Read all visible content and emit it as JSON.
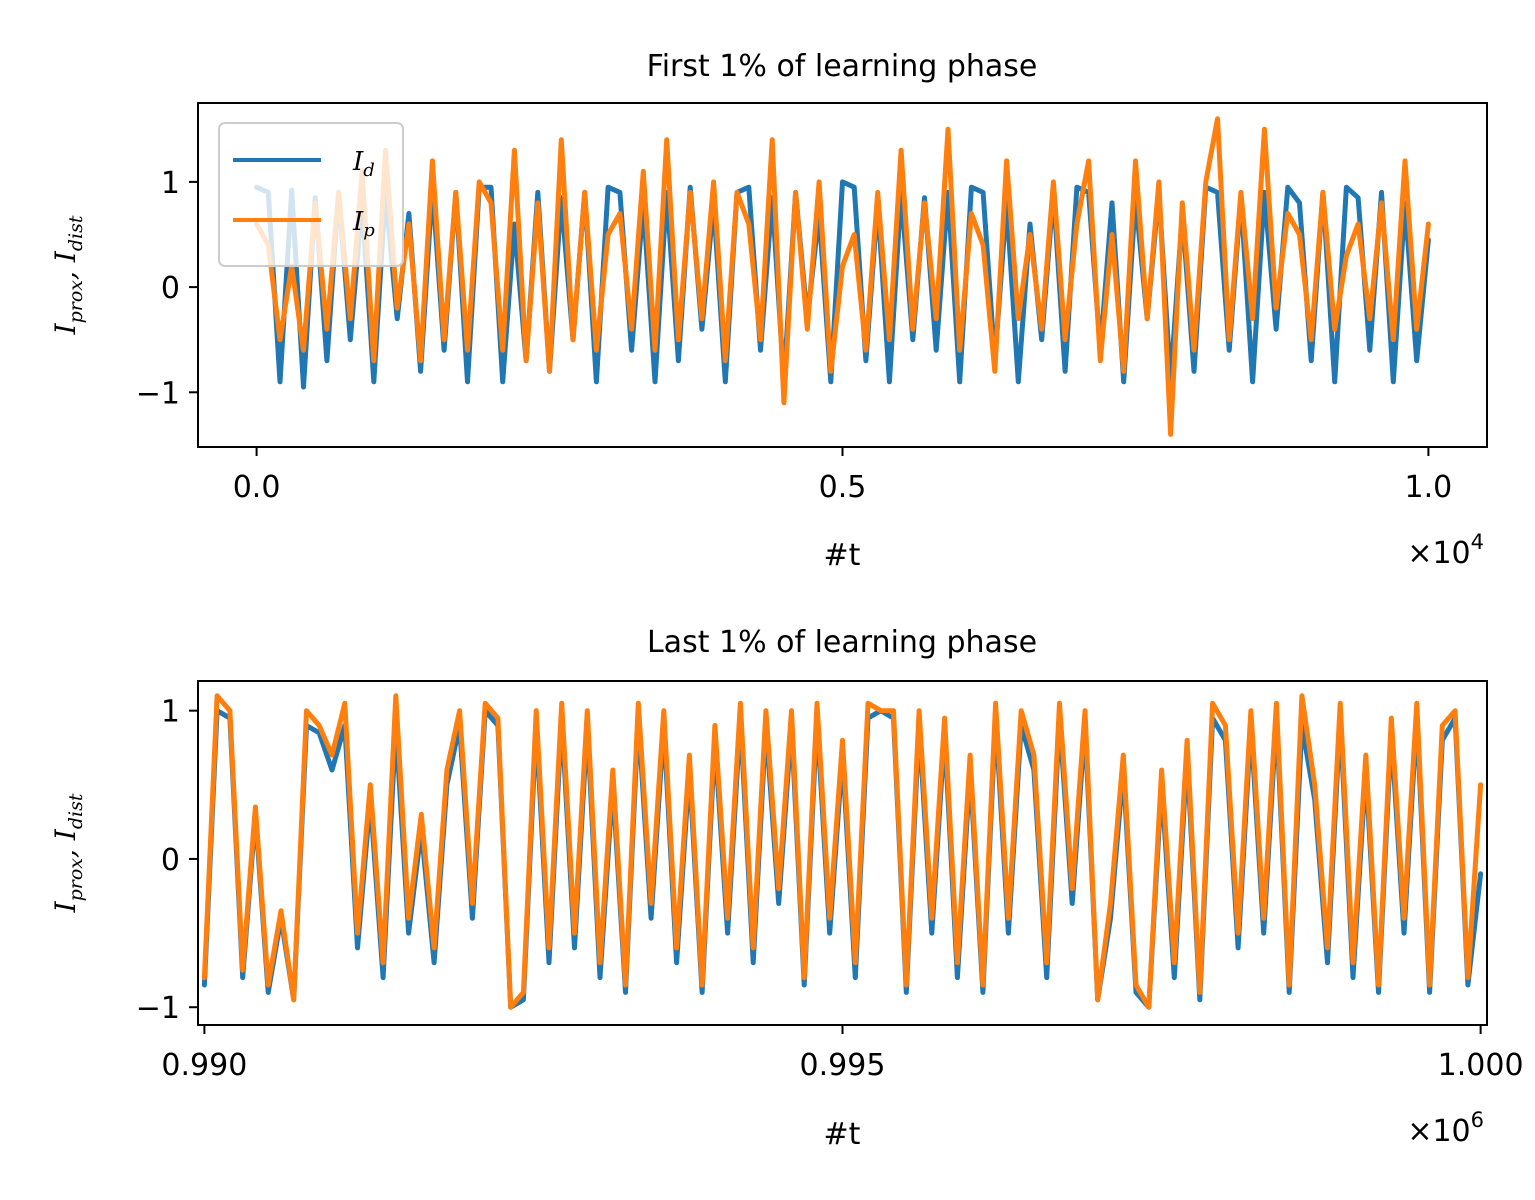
{
  "chart_data": [
    {
      "type": "line",
      "title": "First 1% of learning phase",
      "xlabel": "#t",
      "ylabel": {
        "main": "I",
        "sub1": "prox",
        "sep": ", ",
        "main2": "I",
        "sub2": "dist"
      },
      "xlim": [
        -500,
        10500
      ],
      "ylim": [
        -1.52,
        1.75
      ],
      "xticks": [
        0,
        5000,
        10000
      ],
      "xtick_labels": [
        "0.0",
        "0.5",
        "1.0"
      ],
      "offset_text": {
        "base": "×10",
        "exp": "4"
      },
      "yticks": [
        1,
        0,
        -1
      ],
      "ytick_labels": [
        "1",
        "0",
        "−1"
      ],
      "legend": {
        "placement": "upper-left"
      },
      "series": [
        {
          "name": "I_d",
          "label_main": "I",
          "label_sub": "d",
          "color": "#1f77b4",
          "x": [
            0,
            100,
            200,
            300,
            400,
            500,
            600,
            700,
            800,
            900,
            1000,
            1100,
            1200,
            1300,
            1400,
            1500,
            1600,
            1700,
            1800,
            1900,
            2000,
            2100,
            2200,
            2300,
            2400,
            2500,
            2600,
            2700,
            2800,
            2900,
            3000,
            3100,
            3200,
            3300,
            3400,
            3500,
            3600,
            3700,
            3800,
            3900,
            4000,
            4100,
            4200,
            4300,
            4400,
            4500,
            4600,
            4700,
            4800,
            4900,
            5000,
            5100,
            5200,
            5300,
            5400,
            5500,
            5600,
            5700,
            5800,
            5900,
            6000,
            6100,
            6200,
            6300,
            6400,
            6500,
            6600,
            6700,
            6800,
            6900,
            7000,
            7100,
            7200,
            7300,
            7400,
            7500,
            7600,
            7700,
            7800,
            7900,
            8000,
            8100,
            8200,
            8300,
            8400,
            8500,
            8600,
            8700,
            8800,
            8900,
            9000,
            9100,
            9200,
            9300,
            9400,
            9500,
            9600,
            9700,
            9800,
            9900,
            10000
          ],
          "y": [
            0.95,
            0.9,
            -0.9,
            0.92,
            -0.95,
            0.85,
            -0.7,
            0.9,
            -0.5,
            0.8,
            -0.9,
            0.9,
            -0.3,
            0.7,
            -0.8,
            0.95,
            -0.6,
            0.9,
            -0.9,
            0.95,
            0.95,
            -0.9,
            0.6,
            -0.7,
            0.9,
            -0.8,
            0.85,
            -0.5,
            0.9,
            -0.9,
            0.95,
            0.9,
            -0.6,
            0.8,
            -0.9,
            0.9,
            -0.7,
            0.95,
            -0.4,
            0.8,
            -0.9,
            0.9,
            0.95,
            -0.6,
            0.85,
            -0.9,
            0.9,
            -0.3,
            0.7,
            -0.9,
            1.0,
            0.95,
            -0.7,
            0.8,
            -0.9,
            0.9,
            -0.5,
            0.85,
            -0.6,
            0.9,
            -0.9,
            0.95,
            0.9,
            -0.7,
            0.8,
            -0.9,
            0.6,
            -0.5,
            0.9,
            -0.8,
            0.95,
            0.9,
            -0.6,
            0.8,
            -0.9,
            0.85,
            -0.3,
            0.9,
            -0.9,
            0.7,
            -0.8,
            0.95,
            0.9,
            -0.6,
            0.85,
            -0.9,
            0.9,
            -0.4,
            0.95,
            0.8,
            -0.7,
            0.9,
            -0.9,
            0.95,
            0.85,
            -0.6,
            0.9,
            -0.9,
            0.8,
            -0.7,
            0.45
          ]
        },
        {
          "name": "I_p",
          "label_main": "I",
          "label_sub": "p",
          "color": "#ff7f0e",
          "x": [
            0,
            100,
            200,
            300,
            400,
            500,
            600,
            700,
            800,
            900,
            1000,
            1100,
            1200,
            1300,
            1400,
            1500,
            1600,
            1700,
            1800,
            1900,
            2000,
            2100,
            2200,
            2300,
            2400,
            2500,
            2600,
            2700,
            2800,
            2900,
            3000,
            3100,
            3200,
            3300,
            3400,
            3500,
            3600,
            3700,
            3800,
            3900,
            4000,
            4100,
            4200,
            4300,
            4400,
            4500,
            4600,
            4700,
            4800,
            4900,
            5000,
            5100,
            5200,
            5300,
            5400,
            5500,
            5600,
            5700,
            5800,
            5900,
            6000,
            6100,
            6200,
            6300,
            6400,
            6500,
            6600,
            6700,
            6800,
            6900,
            7000,
            7100,
            7200,
            7300,
            7400,
            7500,
            7600,
            7700,
            7800,
            7900,
            8000,
            8100,
            8200,
            8300,
            8400,
            8500,
            8600,
            8700,
            8800,
            8900,
            9000,
            9100,
            9200,
            9300,
            9400,
            9500,
            9600,
            9700,
            9800,
            9900,
            10000
          ],
          "y": [
            0.6,
            0.4,
            -0.5,
            0.2,
            -0.6,
            0.8,
            -0.4,
            0.9,
            -0.3,
            1.1,
            -0.7,
            1.3,
            -0.2,
            0.6,
            -0.7,
            1.2,
            -0.5,
            0.9,
            -0.6,
            1.0,
            0.8,
            -0.6,
            1.3,
            -0.7,
            0.8,
            -0.8,
            1.4,
            -0.5,
            0.9,
            -0.6,
            0.5,
            0.7,
            -0.4,
            1.1,
            -0.6,
            1.4,
            -0.5,
            0.9,
            -0.3,
            1.0,
            -0.7,
            0.9,
            0.6,
            -0.5,
            1.4,
            -1.1,
            0.9,
            -0.4,
            1.0,
            -0.8,
            0.2,
            0.5,
            -0.6,
            0.9,
            -0.5,
            1.3,
            -0.4,
            0.8,
            -0.3,
            1.5,
            -0.6,
            0.7,
            0.4,
            -0.8,
            1.2,
            -0.3,
            0.5,
            -0.4,
            1.0,
            -0.5,
            0.6,
            1.2,
            -0.7,
            0.5,
            -0.8,
            1.2,
            -0.3,
            1.0,
            -1.4,
            0.8,
            -0.6,
            1.0,
            1.6,
            -0.5,
            0.9,
            -0.3,
            1.5,
            -0.2,
            0.7,
            0.5,
            -0.5,
            0.9,
            -0.4,
            0.3,
            0.6,
            -0.3,
            0.8,
            -0.5,
            1.2,
            -0.4,
            0.6
          ]
        }
      ]
    },
    {
      "type": "line",
      "title": "Last 1% of learning phase",
      "xlabel": "#t",
      "ylabel": {
        "main": "I",
        "sub1": "prox",
        "sep": ", ",
        "main2": "I",
        "sub2": "dist"
      },
      "xlim": [
        989950,
        1000050
      ],
      "ylim": [
        -1.12,
        1.2
      ],
      "xticks": [
        990000,
        995000,
        1000000
      ],
      "xtick_labels": [
        "0.990",
        "0.995",
        "1.000"
      ],
      "offset_text": {
        "base": "×10",
        "exp": "6"
      },
      "yticks": [
        1,
        0,
        -1
      ],
      "ytick_labels": [
        "1",
        "0",
        "−1"
      ],
      "series": [
        {
          "name": "I_d",
          "color": "#1f77b4",
          "x": [
            990000,
            990100,
            990200,
            990300,
            990400,
            990500,
            990600,
            990700,
            990800,
            990900,
            991000,
            991100,
            991200,
            991300,
            991400,
            991500,
            991600,
            991700,
            991800,
            991900,
            992000,
            992100,
            992200,
            992300,
            992400,
            992500,
            992600,
            992700,
            992800,
            992900,
            993000,
            993100,
            993200,
            993300,
            993400,
            993500,
            993600,
            993700,
            993800,
            993900,
            994000,
            994100,
            994200,
            994300,
            994400,
            994500,
            994600,
            994700,
            994800,
            994900,
            995000,
            995100,
            995200,
            995300,
            995400,
            995500,
            995600,
            995700,
            995800,
            995900,
            996000,
            996100,
            996200,
            996300,
            996400,
            996500,
            996600,
            996700,
            996800,
            996900,
            997000,
            997100,
            997200,
            997300,
            997400,
            997500,
            997600,
            997700,
            997800,
            997900,
            998000,
            998100,
            998200,
            998300,
            998400,
            998500,
            998600,
            998700,
            998800,
            998900,
            999000,
            999100,
            999200,
            999300,
            999400,
            999500,
            999600,
            999700,
            999800,
            999900,
            1000000
          ],
          "y": [
            -0.85,
            1.0,
            0.95,
            -0.8,
            0.3,
            -0.9,
            -0.4,
            -0.95,
            0.9,
            0.85,
            0.6,
            0.9,
            -0.6,
            0.4,
            -0.8,
            0.9,
            -0.5,
            0.2,
            -0.7,
            0.5,
            0.9,
            -0.4,
            1.0,
            0.9,
            -1.0,
            -0.95,
            0.9,
            -0.7,
            0.95,
            -0.6,
            0.9,
            -0.8,
            0.5,
            -0.9,
            0.95,
            -0.4,
            0.9,
            -0.7,
            0.6,
            -0.9,
            0.8,
            -0.5,
            0.95,
            -0.7,
            0.9,
            -0.3,
            0.9,
            -0.85,
            0.95,
            -0.5,
            0.7,
            -0.8,
            0.95,
            1.0,
            0.95,
            -0.9,
            0.9,
            -0.5,
            0.85,
            -0.8,
            0.6,
            -0.9,
            0.95,
            -0.5,
            0.9,
            0.6,
            -0.8,
            0.95,
            -0.3,
            0.9,
            -0.95,
            -0.4,
            0.6,
            -0.9,
            -1.0,
            0.5,
            -0.8,
            0.7,
            -0.95,
            0.95,
            0.8,
            -0.6,
            0.9,
            -0.5,
            0.95,
            -0.9,
            0.9,
            0.4,
            -0.7,
            0.95,
            -0.8,
            0.6,
            -0.9,
            0.85,
            -0.5,
            0.95,
            -0.9,
            0.8,
            0.95,
            -0.85,
            -0.1
          ]
        },
        {
          "name": "I_p",
          "color": "#ff7f0e",
          "x": [
            990000,
            990100,
            990200,
            990300,
            990400,
            990500,
            990600,
            990700,
            990800,
            990900,
            991000,
            991100,
            991200,
            991300,
            991400,
            991500,
            991600,
            991700,
            991800,
            991900,
            992000,
            992100,
            992200,
            992300,
            992400,
            992500,
            992600,
            992700,
            992800,
            992900,
            993000,
            993100,
            993200,
            993300,
            993400,
            993500,
            993600,
            993700,
            993800,
            993900,
            994000,
            994100,
            994200,
            994300,
            994400,
            994500,
            994600,
            994700,
            994800,
            994900,
            995000,
            995100,
            995200,
            995300,
            995400,
            995500,
            995600,
            995700,
            995800,
            995900,
            996000,
            996100,
            996200,
            996300,
            996400,
            996500,
            996600,
            996700,
            996800,
            996900,
            997000,
            997100,
            997200,
            997300,
            997400,
            997500,
            997600,
            997700,
            997800,
            997900,
            998000,
            998100,
            998200,
            998300,
            998400,
            998500,
            998600,
            998700,
            998800,
            998900,
            999000,
            999100,
            999200,
            999300,
            999400,
            999500,
            999600,
            999700,
            999800,
            999900,
            1000000
          ],
          "y": [
            -0.8,
            1.1,
            1.0,
            -0.75,
            0.35,
            -0.85,
            -0.35,
            -0.95,
            1.0,
            0.9,
            0.7,
            1.05,
            -0.5,
            0.5,
            -0.7,
            1.1,
            -0.4,
            0.3,
            -0.6,
            0.6,
            1.0,
            -0.3,
            1.05,
            0.95,
            -1.0,
            -0.9,
            1.0,
            -0.6,
            1.05,
            -0.5,
            1.0,
            -0.7,
            0.6,
            -0.85,
            1.05,
            -0.3,
            1.0,
            -0.6,
            0.7,
            -0.85,
            0.9,
            -0.4,
            1.05,
            -0.6,
            1.0,
            -0.2,
            1.0,
            -0.8,
            1.05,
            -0.4,
            0.8,
            -0.7,
            1.05,
            1.0,
            1.0,
            -0.85,
            1.0,
            -0.4,
            0.95,
            -0.7,
            0.7,
            -0.85,
            1.05,
            -0.4,
            1.0,
            0.7,
            -0.7,
            1.05,
            -0.2,
            1.0,
            -0.95,
            -0.3,
            0.7,
            -0.85,
            -1.0,
            0.6,
            -0.7,
            0.8,
            -0.9,
            1.05,
            0.9,
            -0.5,
            1.0,
            -0.4,
            1.05,
            -0.85,
            1.1,
            0.5,
            -0.6,
            1.05,
            -0.7,
            0.7,
            -0.85,
            0.95,
            -0.4,
            1.05,
            -0.85,
            0.9,
            1.0,
            -0.8,
            0.5
          ]
        }
      ]
    }
  ]
}
